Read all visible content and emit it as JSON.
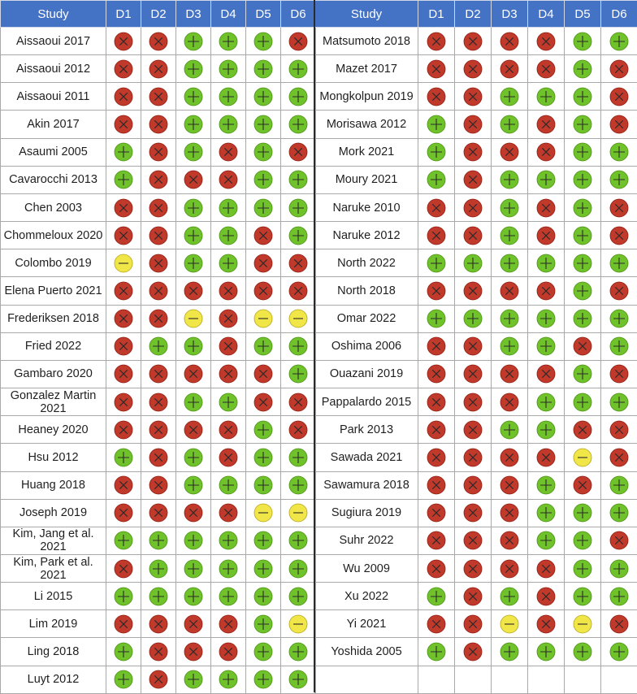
{
  "headers": [
    "Study",
    "D1",
    "D2",
    "D3",
    "D4",
    "D5",
    "D6"
  ],
  "legend": {
    "G": "low risk (+)",
    "R": "high risk (x)",
    "Y": "unclear risk (-)"
  },
  "colors": {
    "G": {
      "fill": "#70c22a",
      "stroke": "#4a8f14"
    },
    "R": {
      "fill": "#c0392b",
      "stroke": "#8e1d12"
    },
    "Y": {
      "fill": "#f1e648",
      "stroke": "#b7a51a"
    },
    "header_bg": "#4472c4"
  },
  "left": [
    {
      "study": "Aissaoui 2017",
      "r": [
        "R",
        "R",
        "G",
        "G",
        "G",
        "R"
      ]
    },
    {
      "study": "Aissaoui 2012",
      "r": [
        "R",
        "R",
        "G",
        "G",
        "G",
        "G"
      ]
    },
    {
      "study": "Aissaoui 2011",
      "r": [
        "R",
        "R",
        "G",
        "G",
        "G",
        "G"
      ]
    },
    {
      "study": "Akin 2017",
      "r": [
        "R",
        "R",
        "G",
        "G",
        "G",
        "G"
      ]
    },
    {
      "study": "Asaumi 2005",
      "r": [
        "G",
        "R",
        "G",
        "R",
        "G",
        "R"
      ]
    },
    {
      "study": "Cavarocchi 2013",
      "r": [
        "G",
        "R",
        "R",
        "R",
        "G",
        "G"
      ]
    },
    {
      "study": "Chen 2003",
      "r": [
        "R",
        "R",
        "G",
        "G",
        "G",
        "G"
      ]
    },
    {
      "study": "Chommeloux 2020",
      "r": [
        "R",
        "R",
        "G",
        "G",
        "R",
        "G"
      ]
    },
    {
      "study": "Colombo 2019",
      "r": [
        "Y",
        "R",
        "G",
        "G",
        "R",
        "R"
      ]
    },
    {
      "study": "Elena Puerto 2021",
      "r": [
        "R",
        "R",
        "R",
        "R",
        "R",
        "R"
      ]
    },
    {
      "study": "Frederiksen 2018",
      "r": [
        "R",
        "R",
        "Y",
        "R",
        "Y",
        "Y"
      ]
    },
    {
      "study": "Fried 2022",
      "r": [
        "R",
        "G",
        "G",
        "R",
        "G",
        "G"
      ]
    },
    {
      "study": "Gambaro 2020",
      "r": [
        "R",
        "R",
        "R",
        "R",
        "R",
        "G"
      ]
    },
    {
      "study": "Gonzalez Martin 2021",
      "r": [
        "R",
        "R",
        "G",
        "G",
        "R",
        "R"
      ]
    },
    {
      "study": "Heaney 2020",
      "r": [
        "R",
        "R",
        "R",
        "R",
        "G",
        "R"
      ]
    },
    {
      "study": "Hsu 2012",
      "r": [
        "G",
        "R",
        "G",
        "R",
        "G",
        "G"
      ]
    },
    {
      "study": "Huang 2018",
      "r": [
        "R",
        "R",
        "G",
        "G",
        "G",
        "G"
      ]
    },
    {
      "study": "Joseph 2019",
      "r": [
        "R",
        "R",
        "R",
        "R",
        "Y",
        "Y"
      ]
    },
    {
      "study": "Kim, Jang et al. 2021",
      "r": [
        "G",
        "G",
        "G",
        "G",
        "G",
        "G"
      ]
    },
    {
      "study": "Kim, Park et al. 2021",
      "r": [
        "R",
        "G",
        "G",
        "G",
        "G",
        "G"
      ]
    },
    {
      "study": "Li 2015",
      "r": [
        "G",
        "G",
        "G",
        "G",
        "G",
        "G"
      ]
    },
    {
      "study": "Lim 2019",
      "r": [
        "R",
        "R",
        "R",
        "R",
        "G",
        "Y"
      ]
    },
    {
      "study": "Ling 2018",
      "r": [
        "G",
        "R",
        "R",
        "R",
        "G",
        "G"
      ]
    },
    {
      "study": "Luyt 2012",
      "r": [
        "G",
        "R",
        "G",
        "G",
        "G",
        "G"
      ]
    }
  ],
  "right": [
    {
      "study": "Matsumoto 2018",
      "r": [
        "R",
        "R",
        "R",
        "R",
        "G",
        "G"
      ]
    },
    {
      "study": "Mazet 2017",
      "r": [
        "R",
        "R",
        "R",
        "R",
        "G",
        "R"
      ]
    },
    {
      "study": "Mongkolpun 2019",
      "r": [
        "R",
        "R",
        "G",
        "G",
        "G",
        "R"
      ]
    },
    {
      "study": "Morisawa 2012",
      "r": [
        "G",
        "R",
        "G",
        "R",
        "G",
        "R"
      ]
    },
    {
      "study": "Mork 2021",
      "r": [
        "G",
        "R",
        "R",
        "R",
        "G",
        "G"
      ]
    },
    {
      "study": "Moury 2021",
      "r": [
        "G",
        "R",
        "G",
        "G",
        "G",
        "G"
      ]
    },
    {
      "study": "Naruke 2010",
      "r": [
        "R",
        "R",
        "G",
        "R",
        "G",
        "R"
      ]
    },
    {
      "study": "Naruke 2012",
      "r": [
        "R",
        "R",
        "G",
        "R",
        "G",
        "R"
      ]
    },
    {
      "study": "North 2022",
      "r": [
        "G",
        "G",
        "G",
        "G",
        "G",
        "G"
      ]
    },
    {
      "study": "North 2018",
      "r": [
        "R",
        "R",
        "R",
        "R",
        "G",
        "R"
      ]
    },
    {
      "study": "Omar 2022",
      "r": [
        "G",
        "G",
        "G",
        "G",
        "G",
        "G"
      ]
    },
    {
      "study": "Oshima 2006",
      "r": [
        "R",
        "R",
        "G",
        "G",
        "R",
        "G"
      ]
    },
    {
      "study": "Ouazani 2019",
      "r": [
        "R",
        "R",
        "R",
        "R",
        "G",
        "R"
      ]
    },
    {
      "study": "Pappalardo 2015",
      "r": [
        "R",
        "R",
        "R",
        "G",
        "G",
        "G"
      ]
    },
    {
      "study": "Park 2013",
      "r": [
        "R",
        "R",
        "G",
        "G",
        "R",
        "R"
      ]
    },
    {
      "study": "Sawada 2021",
      "r": [
        "R",
        "R",
        "R",
        "R",
        "Y",
        "R"
      ]
    },
    {
      "study": "Sawamura 2018",
      "r": [
        "R",
        "R",
        "R",
        "G",
        "R",
        "G"
      ]
    },
    {
      "study": "Sugiura 2019",
      "r": [
        "R",
        "R",
        "R",
        "G",
        "G",
        "G"
      ]
    },
    {
      "study": "Suhr 2022",
      "r": [
        "R",
        "R",
        "R",
        "G",
        "G",
        "R"
      ]
    },
    {
      "study": "Wu 2009",
      "r": [
        "R",
        "R",
        "R",
        "R",
        "G",
        "G"
      ]
    },
    {
      "study": "Xu 2022",
      "r": [
        "G",
        "R",
        "G",
        "R",
        "G",
        "G"
      ]
    },
    {
      "study": "Yi 2021",
      "r": [
        "R",
        "R",
        "Y",
        "R",
        "Y",
        "R"
      ]
    },
    {
      "study": "Yoshida 2005",
      "r": [
        "G",
        "R",
        "G",
        "G",
        "G",
        "G"
      ]
    }
  ]
}
